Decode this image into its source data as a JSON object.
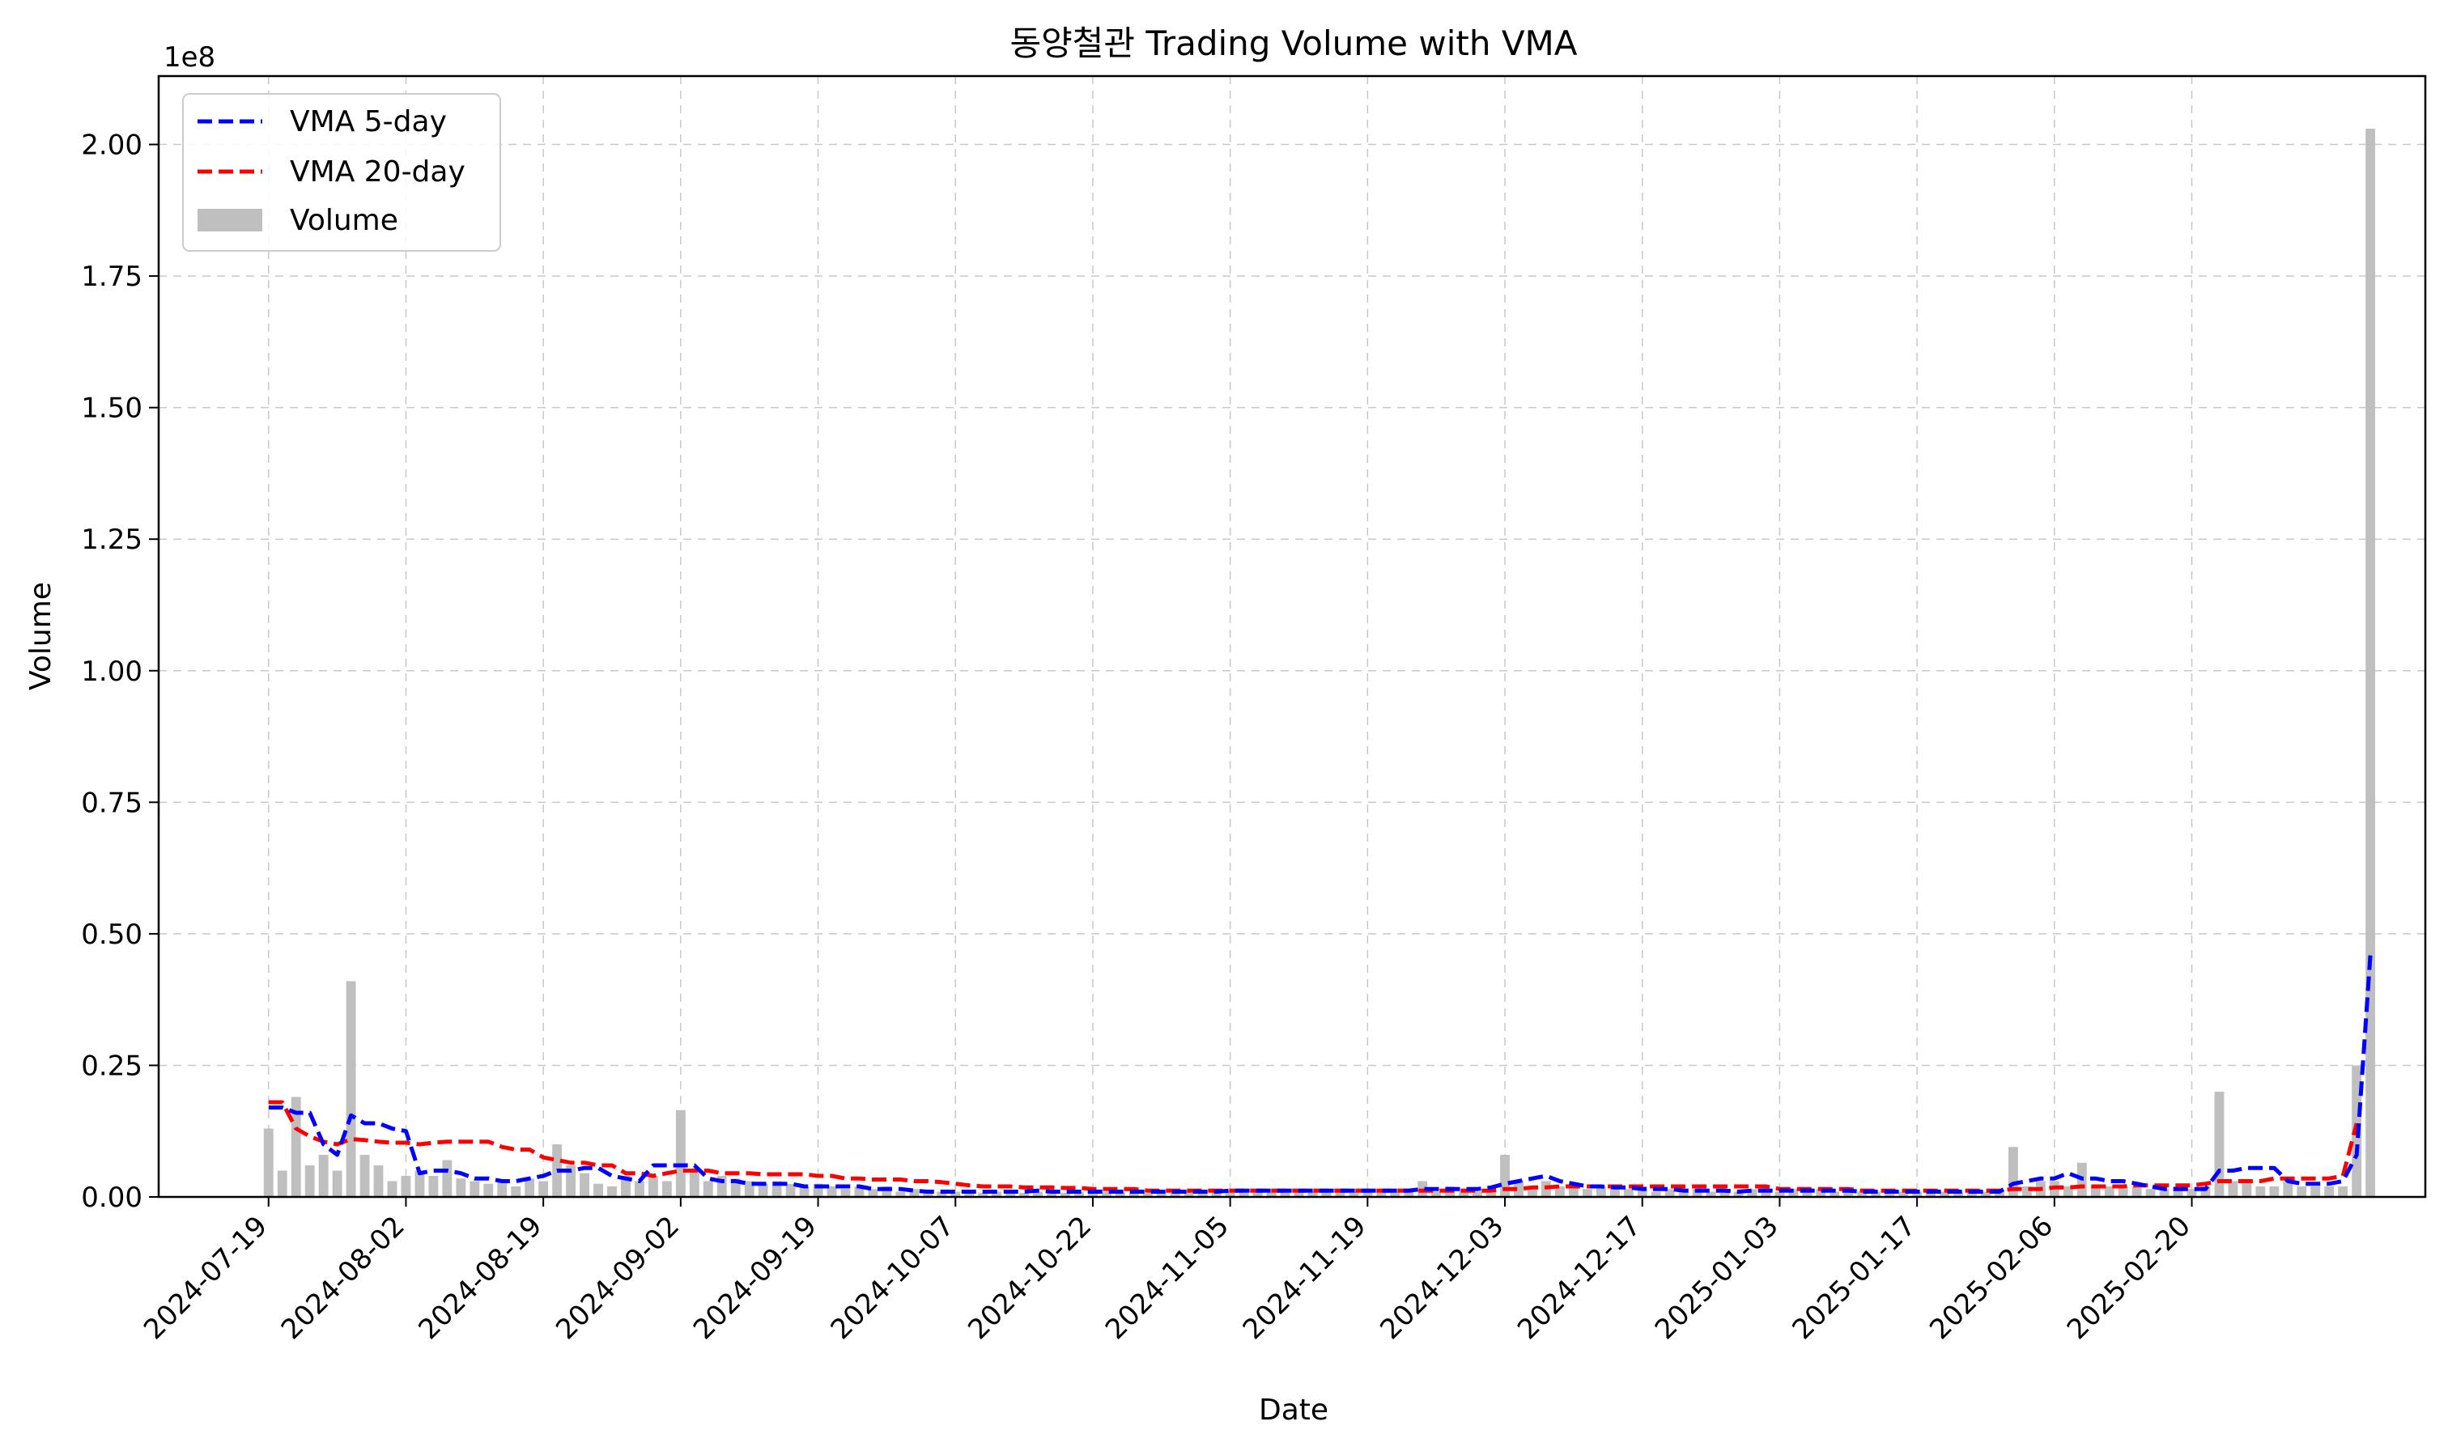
{
  "chart_data": {
    "type": "bar",
    "title": "동양철관 Trading Volume with VMA",
    "xlabel": "Date",
    "ylabel": "Volume",
    "y_scale_label": "1e8",
    "ylim": [
      0,
      2.13
    ],
    "y_ticks": [
      0.0,
      0.25,
      0.5,
      0.75,
      1.0,
      1.25,
      1.5,
      1.75,
      2.0
    ],
    "y_tick_labels": [
      "0.00",
      "0.25",
      "0.50",
      "0.75",
      "1.00",
      "1.25",
      "1.50",
      "1.75",
      "2.00"
    ],
    "x_tick_labels": [
      "2024-07-19",
      "2024-08-02",
      "2024-08-19",
      "2024-09-02",
      "2024-09-19",
      "2024-10-07",
      "2024-10-22",
      "2024-11-05",
      "2024-11-19",
      "2024-12-03",
      "2024-12-17",
      "2025-01-03",
      "2025-01-17",
      "2025-02-06",
      "2025-02-20"
    ],
    "x_tick_positions": [
      0,
      10,
      20,
      30,
      40,
      50,
      60,
      70,
      80,
      90,
      100,
      110,
      120,
      130,
      140
    ],
    "x_range": [
      -8,
      157
    ],
    "grid": true,
    "legend_position": "top-left",
    "legend": [
      {
        "label": "VMA 5-day",
        "color": "#0000ff",
        "kind": "dashed-line"
      },
      {
        "label": "VMA 20-day",
        "color": "#ff0000",
        "kind": "dashed-line"
      },
      {
        "label": "Volume",
        "color": "#bfbfbf",
        "kind": "bar"
      }
    ],
    "volume": [
      0.13,
      0.05,
      0.19,
      0.06,
      0.08,
      0.05,
      0.41,
      0.08,
      0.06,
      0.03,
      0.04,
      0.05,
      0.04,
      0.07,
      0.035,
      0.03,
      0.025,
      0.03,
      0.02,
      0.035,
      0.03,
      0.1,
      0.06,
      0.045,
      0.025,
      0.02,
      0.04,
      0.03,
      0.04,
      0.03,
      0.165,
      0.05,
      0.03,
      0.04,
      0.035,
      0.03,
      0.025,
      0.03,
      0.025,
      0.02,
      0.025,
      0.02,
      0.015,
      0.02,
      0.015,
      0.02,
      0.01,
      0.015,
      0.01,
      0.01,
      0.01,
      0.01,
      0.008,
      0.01,
      0.008,
      0.008,
      0.01,
      0.008,
      0.008,
      0.01,
      0.008,
      0.01,
      0.01,
      0.008,
      0.008,
      0.01,
      0.008,
      0.01,
      0.01,
      0.01,
      0.01,
      0.008,
      0.01,
      0.01,
      0.01,
      0.01,
      0.01,
      0.01,
      0.01,
      0.01,
      0.01,
      0.01,
      0.01,
      0.01,
      0.03,
      0.01,
      0.02,
      0.01,
      0.01,
      0.015,
      0.08,
      0.03,
      0.02,
      0.03,
      0.02,
      0.02,
      0.015,
      0.02,
      0.015,
      0.015,
      0.02,
      0.01,
      0.015,
      0.01,
      0.015,
      0.01,
      0.01,
      0.01,
      0.015,
      0.01,
      0.01,
      0.015,
      0.01,
      0.015,
      0.01,
      0.01,
      0.01,
      0.01,
      0.01,
      0.01,
      0.01,
      0.01,
      0.01,
      0.01,
      0.01,
      0.01,
      0.01,
      0.095,
      0.02,
      0.03,
      0.03,
      0.02,
      0.065,
      0.02,
      0.02,
      0.02,
      0.02,
      0.015,
      0.015,
      0.02,
      0.015,
      0.02,
      0.2,
      0.03,
      0.03,
      0.02,
      0.02,
      0.03,
      0.02,
      0.02,
      0.02,
      0.02,
      0.25,
      2.03
    ],
    "vma_5": [
      0.17,
      0.17,
      0.16,
      0.16,
      0.1,
      0.08,
      0.155,
      0.14,
      0.14,
      0.13,
      0.125,
      0.045,
      0.05,
      0.05,
      0.045,
      0.035,
      0.035,
      0.03,
      0.03,
      0.035,
      0.04,
      0.05,
      0.05,
      0.055,
      0.055,
      0.04,
      0.035,
      0.03,
      0.06,
      0.06,
      0.06,
      0.06,
      0.035,
      0.03,
      0.03,
      0.025,
      0.025,
      0.025,
      0.025,
      0.02,
      0.02,
      0.02,
      0.02,
      0.02,
      0.015,
      0.015,
      0.015,
      0.012,
      0.01,
      0.01,
      0.01,
      0.01,
      0.01,
      0.01,
      0.01,
      0.01,
      0.012,
      0.01,
      0.01,
      0.01,
      0.01,
      0.01,
      0.01,
      0.01,
      0.01,
      0.01,
      0.01,
      0.01,
      0.01,
      0.01,
      0.012,
      0.012,
      0.012,
      0.012,
      0.012,
      0.012,
      0.012,
      0.012,
      0.012,
      0.012,
      0.012,
      0.012,
      0.012,
      0.012,
      0.015,
      0.015,
      0.015,
      0.015,
      0.015,
      0.018,
      0.025,
      0.03,
      0.035,
      0.04,
      0.03,
      0.025,
      0.02,
      0.02,
      0.018,
      0.018,
      0.015,
      0.015,
      0.015,
      0.012,
      0.012,
      0.012,
      0.012,
      0.01,
      0.012,
      0.012,
      0.012,
      0.012,
      0.012,
      0.012,
      0.012,
      0.012,
      0.01,
      0.01,
      0.01,
      0.01,
      0.01,
      0.01,
      0.01,
      0.01,
      0.01,
      0.01,
      0.01,
      0.025,
      0.03,
      0.035,
      0.035,
      0.045,
      0.035,
      0.035,
      0.03,
      0.03,
      0.025,
      0.02,
      0.015,
      0.015,
      0.015,
      0.015,
      0.05,
      0.05,
      0.055,
      0.055,
      0.055,
      0.03,
      0.025,
      0.025,
      0.025,
      0.03,
      0.08,
      0.46
    ],
    "vma_20": [
      0.18,
      0.18,
      0.13,
      0.115,
      0.105,
      0.1,
      0.11,
      0.108,
      0.105,
      0.103,
      0.103,
      0.1,
      0.103,
      0.105,
      0.105,
      0.105,
      0.105,
      0.095,
      0.09,
      0.09,
      0.075,
      0.07,
      0.065,
      0.065,
      0.06,
      0.06,
      0.045,
      0.045,
      0.04,
      0.045,
      0.05,
      0.05,
      0.05,
      0.045,
      0.045,
      0.045,
      0.043,
      0.043,
      0.043,
      0.043,
      0.04,
      0.04,
      0.035,
      0.035,
      0.033,
      0.033,
      0.033,
      0.03,
      0.03,
      0.028,
      0.025,
      0.022,
      0.02,
      0.02,
      0.02,
      0.018,
      0.018,
      0.018,
      0.017,
      0.017,
      0.015,
      0.015,
      0.015,
      0.015,
      0.012,
      0.012,
      0.012,
      0.012,
      0.012,
      0.012,
      0.012,
      0.012,
      0.012,
      0.012,
      0.012,
      0.012,
      0.012,
      0.012,
      0.012,
      0.012,
      0.012,
      0.012,
      0.012,
      0.012,
      0.012,
      0.012,
      0.012,
      0.012,
      0.012,
      0.012,
      0.015,
      0.015,
      0.018,
      0.018,
      0.02,
      0.02,
      0.02,
      0.02,
      0.02,
      0.02,
      0.02,
      0.02,
      0.02,
      0.02,
      0.02,
      0.02,
      0.02,
      0.02,
      0.02,
      0.02,
      0.015,
      0.015,
      0.015,
      0.015,
      0.015,
      0.015,
      0.012,
      0.012,
      0.012,
      0.012,
      0.012,
      0.012,
      0.012,
      0.012,
      0.012,
      0.012,
      0.012,
      0.015,
      0.015,
      0.015,
      0.018,
      0.018,
      0.02,
      0.02,
      0.02,
      0.02,
      0.022,
      0.022,
      0.022,
      0.022,
      0.022,
      0.025,
      0.03,
      0.03,
      0.03,
      0.03,
      0.035,
      0.035,
      0.035,
      0.035,
      0.035,
      0.04,
      0.14
    ]
  }
}
